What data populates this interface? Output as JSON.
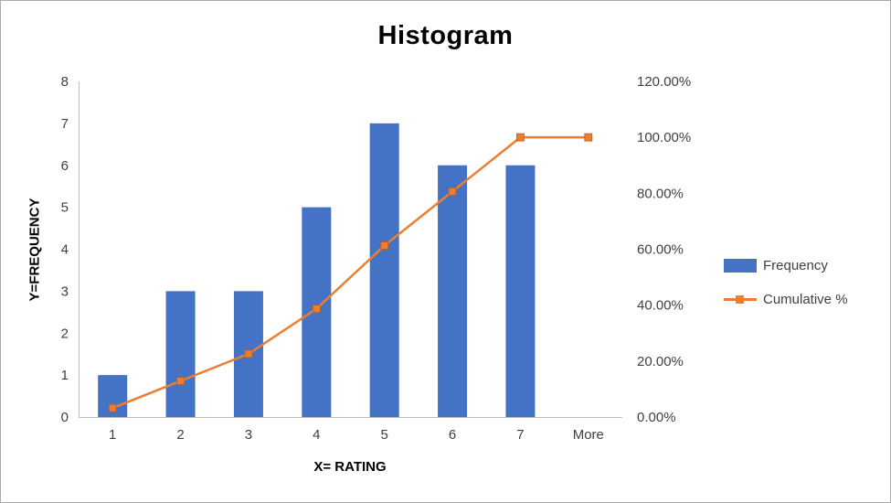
{
  "window": {
    "background": "#FFFFFF",
    "border_color": "#ABABAB",
    "text_color": "#404040"
  },
  "chart_data": {
    "type": "bar",
    "subtype": "histogram-with-cumulative-line",
    "title": "Histogram",
    "xlabel": "X= RATING",
    "ylabel": "Y=FREQUENCY",
    "categories": [
      "1",
      "2",
      "3",
      "4",
      "5",
      "6",
      "7",
      "More"
    ],
    "series": [
      {
        "name": "Frequency",
        "type": "bar",
        "axis": "left",
        "color": "#4472C4",
        "values": [
          1,
          3,
          3,
          5,
          7,
          6,
          6,
          0
        ]
      },
      {
        "name": "Cumulative %",
        "type": "line",
        "axis": "right",
        "color": "#ED7D31",
        "marker": "square",
        "values": [
          3.23,
          12.9,
          22.58,
          38.71,
          61.29,
          80.65,
          100.0,
          100.0
        ]
      }
    ],
    "left_axis": {
      "min": 0,
      "max": 8,
      "step": 1,
      "ticks": [
        "0",
        "1",
        "2",
        "3",
        "4",
        "5",
        "6",
        "7",
        "8"
      ]
    },
    "right_axis": {
      "min": 0,
      "max": 120,
      "step": 20,
      "ticks": [
        "0.00%",
        "20.00%",
        "40.00%",
        "60.00%",
        "80.00%",
        "100.00%",
        "120.00%"
      ]
    },
    "legend": {
      "position": "right",
      "entries": [
        "Frequency",
        "Cumulative %"
      ]
    },
    "grid": false,
    "axis_line_color": "#BFBFBF",
    "tick_label_color": "#404040"
  }
}
